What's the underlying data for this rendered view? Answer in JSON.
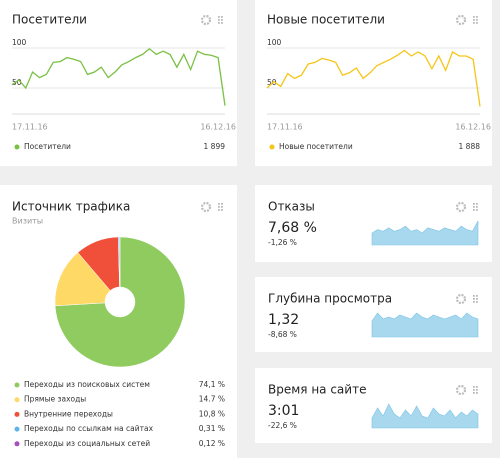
{
  "widgets": [
    {
      "title": "Посетители",
      "total": "1 899",
      "chart": {
        "type": "line",
        "categories": [
          "17.11.16",
          null,
          null,
          null,
          null,
          null,
          null,
          null,
          null,
          null,
          null,
          null,
          null,
          null,
          null,
          null,
          null,
          null,
          null,
          null,
          null,
          null,
          null,
          null,
          null,
          null,
          null,
          null,
          null,
          null,
          "16.12.16",
          null
        ],
        "series": [
          {
            "name": "Посетители",
            "color": "#7ac143",
            "values": [
              54,
              60,
              50,
              70,
              63,
              67,
              82,
              83,
              88,
              86,
              83,
              67,
              70,
              76,
              63,
              70,
              79,
              83,
              88,
              92,
              99,
              92,
              96,
              92,
              76,
              92,
              73,
              96,
              92,
              91,
              88,
              28
            ]
          }
        ],
        "ylim": [
          20,
          110
        ],
        "yticks": [
          50,
          100
        ]
      }
    },
    {
      "title": "Новые посетители",
      "total": "1 888",
      "chart": {
        "type": "line",
        "categories": [
          "17.11.16",
          null,
          null,
          null,
          null,
          null,
          null,
          null,
          null,
          null,
          null,
          null,
          null,
          null,
          null,
          null,
          null,
          null,
          null,
          null,
          null,
          null,
          null,
          null,
          null,
          null,
          null,
          null,
          null,
          null,
          "16.12.16",
          null
        ],
        "series": [
          {
            "name": "Новые посетители",
            "color": "#f5c518",
            "values": [
              50,
              58,
              52,
              68,
              62,
              66,
              80,
              82,
              87,
              85,
              82,
              66,
              69,
              75,
              62,
              69,
              78,
              82,
              86,
              91,
              97,
              90,
              95,
              90,
              74,
              90,
              72,
              95,
              90,
              90,
              86,
              27
            ]
          }
        ],
        "ylim": [
          20,
          110
        ],
        "yticks": [
          50,
          100
        ]
      }
    }
  ],
  "traffic": {
    "title": "Источник трафика",
    "subtitle": "Визиты",
    "chart": {
      "type": "pie",
      "categories": [
        "Переходы из поисковых систем",
        "Прямые заходы",
        "Внутренние переходы",
        "Переходы по ссылкам на сайтах",
        "Переходы из социальных сетей"
      ],
      "values": [
        74.1,
        14.7,
        10.8,
        0.31,
        0.12
      ],
      "value_labels": [
        "74,1 %",
        "14.7 %",
        "10,8 %",
        "0,31 %",
        "0,12 %"
      ],
      "colors": [
        "#8fcb5f",
        "#ffd966",
        "#f04f3a",
        "#5ab4ea",
        "#a64fbf"
      ]
    }
  },
  "metrics": [
    {
      "title": "Отказы",
      "value": "7,68 %",
      "change": "-1,26 %",
      "change_color": "#4caf50",
      "chart": {
        "type": "area",
        "color": "#a8d8ee",
        "values": [
          7,
          9,
          8,
          10,
          8,
          9,
          11,
          8,
          9,
          7,
          10,
          9,
          8,
          10,
          9,
          8,
          11,
          9,
          8,
          14
        ]
      }
    },
    {
      "title": "Глубина просмотра",
      "value": "1,32",
      "change": "-8,68 %",
      "change_color": "#e53935",
      "chart": {
        "type": "area",
        "color": "#a8d8ee",
        "values": [
          8,
          12,
          9,
          10,
          9,
          11,
          10,
          9,
          12,
          10,
          9,
          11,
          10,
          9,
          10,
          11,
          9,
          12,
          10,
          9
        ]
      }
    },
    {
      "title": "Время на сайте",
      "value": "3:01",
      "change": "-22,6 %",
      "change_color": "#e53935",
      "chart": {
        "type": "area",
        "color": "#a8d8ee",
        "values": [
          5,
          10,
          6,
          12,
          7,
          5,
          9,
          6,
          11,
          6,
          5,
          10,
          7,
          6,
          9,
          5,
          8,
          6,
          9,
          7
        ]
      }
    }
  ]
}
